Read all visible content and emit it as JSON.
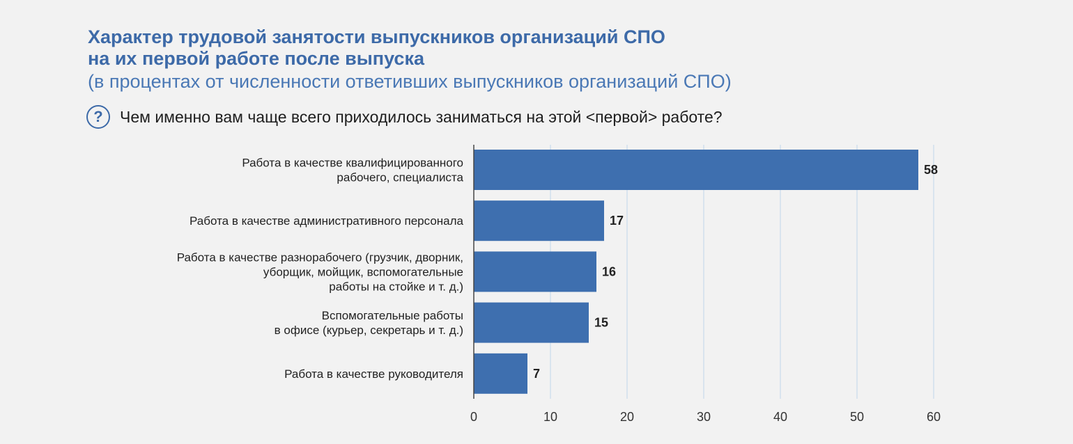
{
  "header": {
    "title_line1": "Характер трудовой занятости выпускников организаций СПО",
    "title_line2": "на их первой работе после выпуска",
    "subtitle": "(в процентах от численности ответивших выпускников организаций СПО)",
    "question_icon": "question-circle-icon",
    "question": "Чем именно вам чаще всего приходилось заниматься на этой <первой> работе?"
  },
  "colors": {
    "bar": "#3e6faf",
    "title": "#3d6aa8",
    "grid": "#c9dcec",
    "axis": "#444444"
  },
  "chart_data": {
    "type": "bar",
    "orientation": "horizontal",
    "categories": [
      [
        "Работа в качестве квалифицированного",
        "рабочего, специалиста"
      ],
      [
        "Работа в качестве административного персонала"
      ],
      [
        "Работа в качестве разнорабочего (грузчик, дворник,",
        "уборщик, мойщик, вспомогательные",
        "работы на стойке и т. д.)"
      ],
      [
        "Вспомогательные работы",
        "в офисе (курьер, секретарь и т. д.)"
      ],
      [
        "Работа в качестве руководителя"
      ]
    ],
    "values": [
      58,
      17,
      16,
      15,
      7
    ],
    "xlim": [
      0,
      60
    ],
    "xticks": [
      0,
      10,
      20,
      30,
      40,
      50,
      60
    ],
    "grid": true
  }
}
